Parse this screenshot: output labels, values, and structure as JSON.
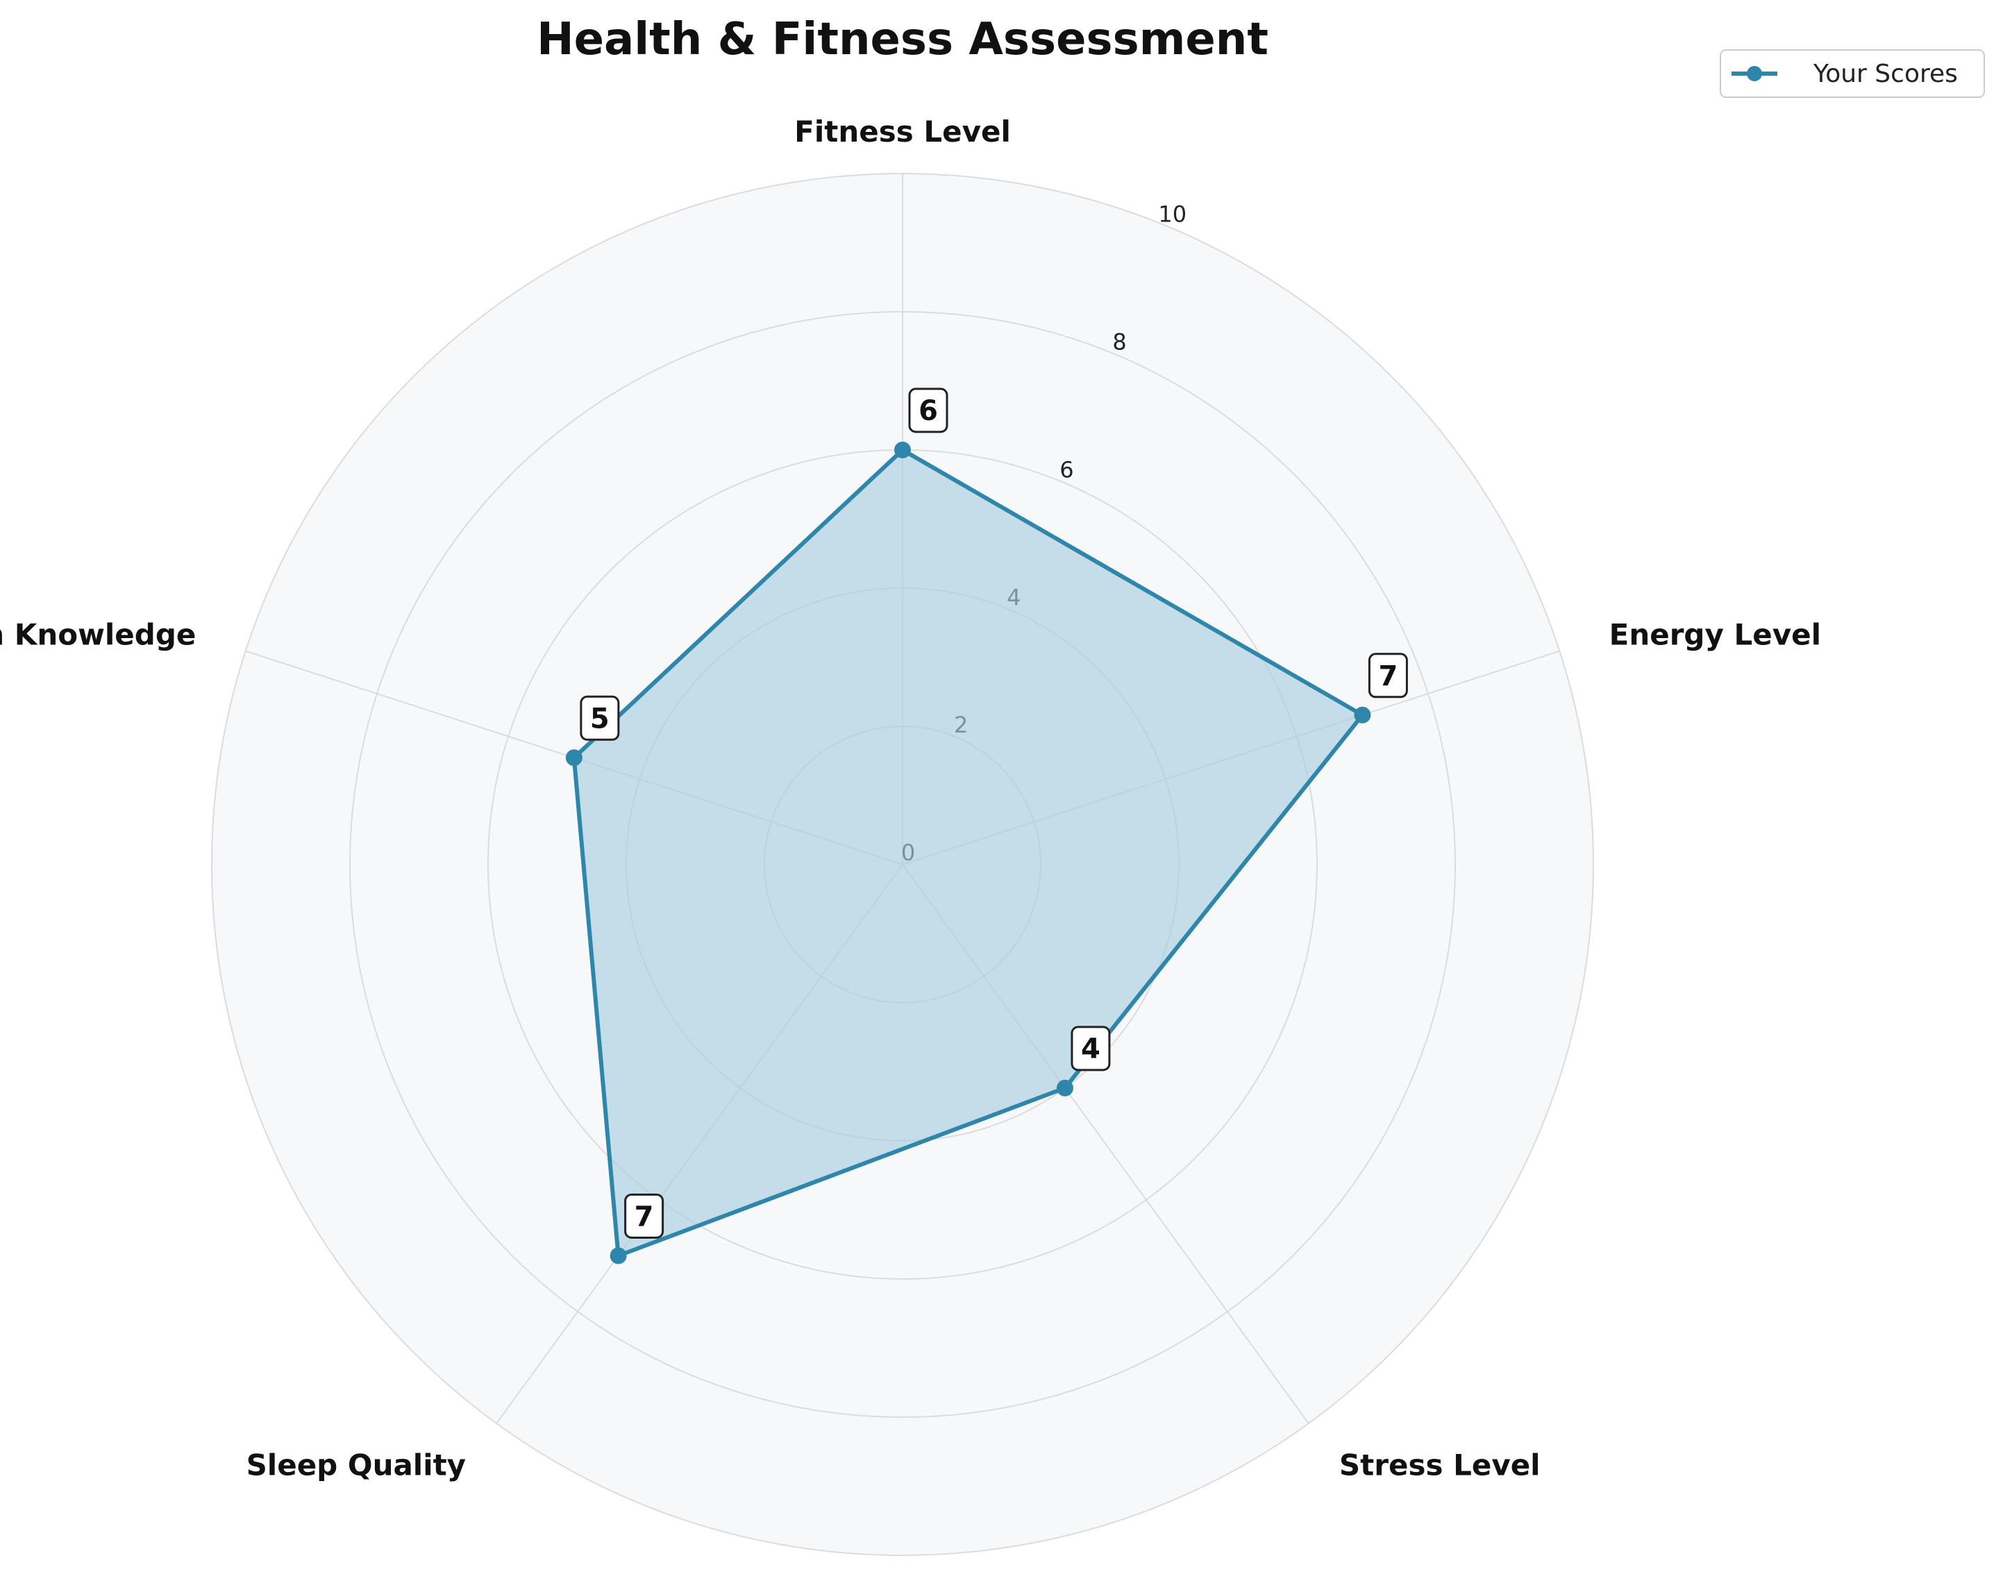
{
  "chart_data": {
    "type": "radar",
    "title": "Health & Fitness Assessment",
    "categories": [
      "Fitness Level",
      "Energy Level",
      "Stress Level",
      "Sleep Quality",
      "Nutrition Knowledge"
    ],
    "series": [
      {
        "name": "Your Scores",
        "values": [
          6,
          7,
          4,
          7,
          5
        ],
        "color": "#2e86ab",
        "fill": "#a9cede"
      }
    ],
    "radial_ticks": [
      0,
      2,
      4,
      6,
      8,
      10
    ],
    "rlim": [
      0,
      10
    ],
    "grid": true,
    "legend_position": "top-right",
    "background_color": "#f7f8fa",
    "grid_color": "#dcdcdc"
  }
}
